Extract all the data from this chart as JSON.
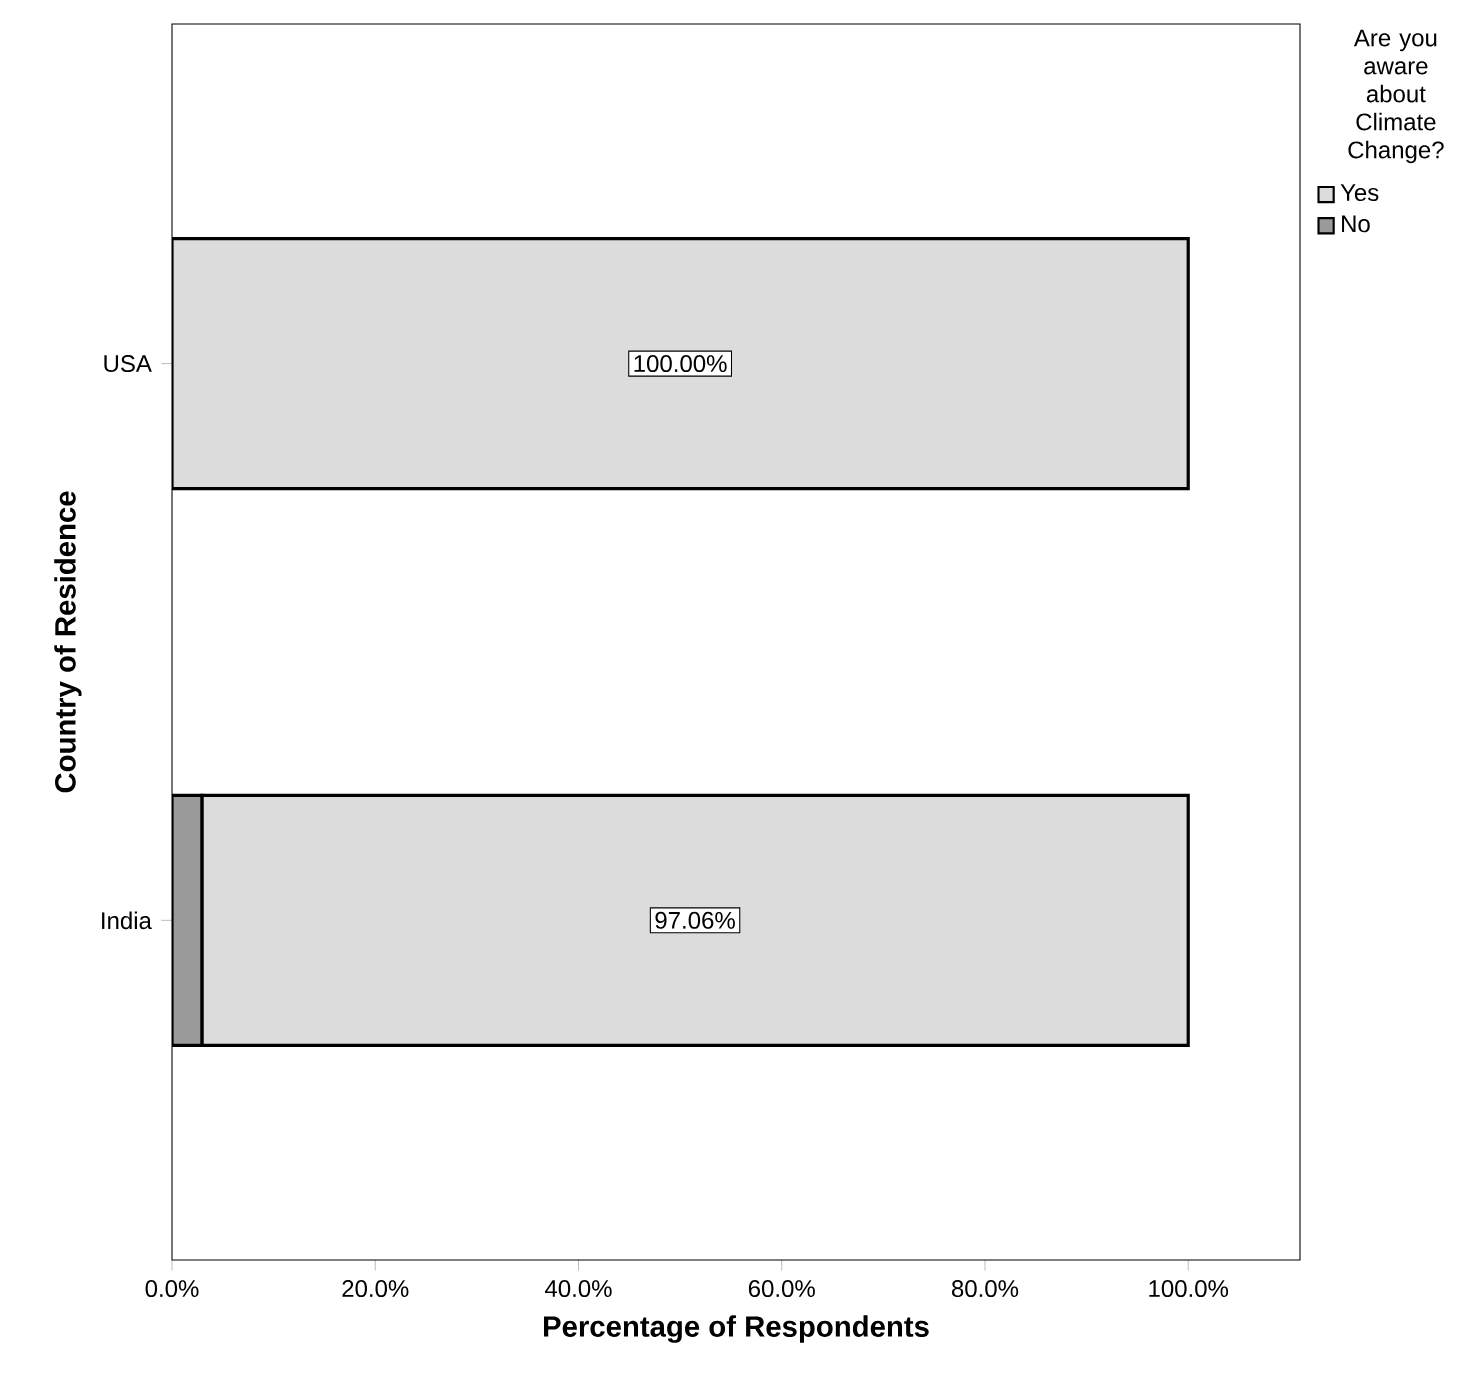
{
  "chart_data": {
    "type": "bar",
    "orientation": "horizontal",
    "stacked": true,
    "xlabel": "Percentage of Respondents",
    "ylabel": "Country of Residence",
    "legend_title": "Are you aware about Climate Change?",
    "legend": "top right",
    "categories": [
      "USA",
      "India"
    ],
    "series": [
      {
        "name": "No",
        "color": "#9a9a9a",
        "values": [
          0,
          2.94
        ]
      },
      {
        "name": "Yes",
        "color": "#dcdcdc",
        "values": [
          100,
          97.06
        ],
        "value_labels": [
          "100.00%",
          "97.06%"
        ]
      }
    ],
    "xlim": [
      0,
      111
    ],
    "xticks": [
      {
        "value": 0,
        "label": "0.0%"
      },
      {
        "value": 20,
        "label": "20.0%"
      },
      {
        "value": 40,
        "label": "40.0%"
      },
      {
        "value": 60,
        "label": "60.0%"
      },
      {
        "value": 80,
        "label": "80.0%"
      },
      {
        "value": 100,
        "label": "100.0%"
      }
    ],
    "grid": false
  }
}
